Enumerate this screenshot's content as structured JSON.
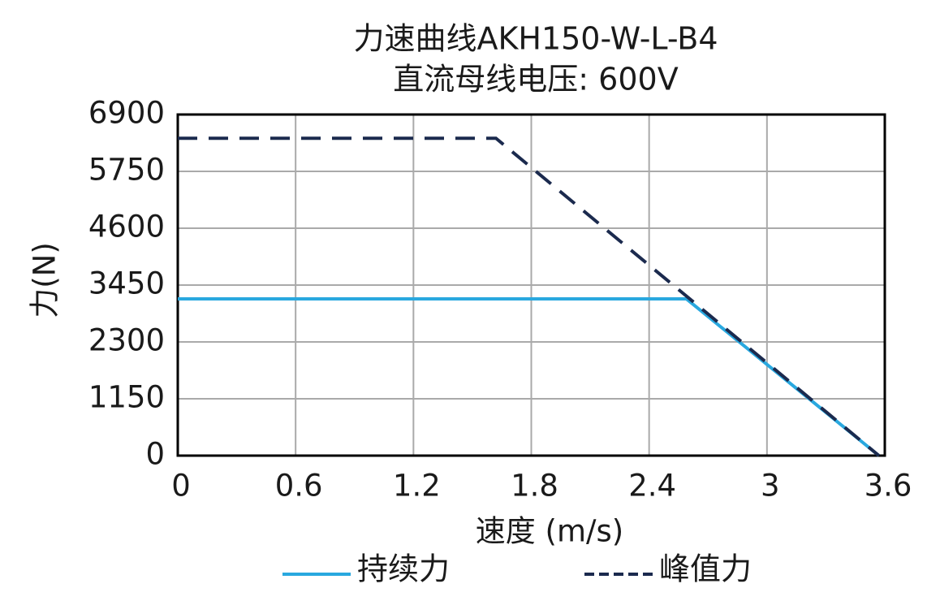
{
  "chart_data": {
    "type": "line",
    "title": "力速曲线AKH150-W-L-B4",
    "subtitle": "直流母线电压: 600V",
    "x_label": "速度 (m/s)",
    "y_label": "力(N)",
    "xlim": [
      0,
      3.6
    ],
    "xticks": [
      0,
      0.6,
      1.2,
      1.8,
      2.4,
      3,
      3.6
    ],
    "ylim": [
      0,
      6900
    ],
    "yticks": [
      0,
      1150,
      2300,
      3450,
      4600,
      5750,
      6900
    ],
    "grid": true,
    "series": [
      {
        "name": "持续力",
        "color": "#29a8df",
        "dashed": false,
        "x": [
          0,
          2.59,
          3.57
        ],
        "values": [
          3170,
          3170,
          0
        ]
      },
      {
        "name": "峰值力",
        "color": "#1b2a4e",
        "dashed": true,
        "x": [
          0,
          1.62,
          3.57
        ],
        "values": [
          6420,
          6420,
          0
        ]
      }
    ]
  }
}
